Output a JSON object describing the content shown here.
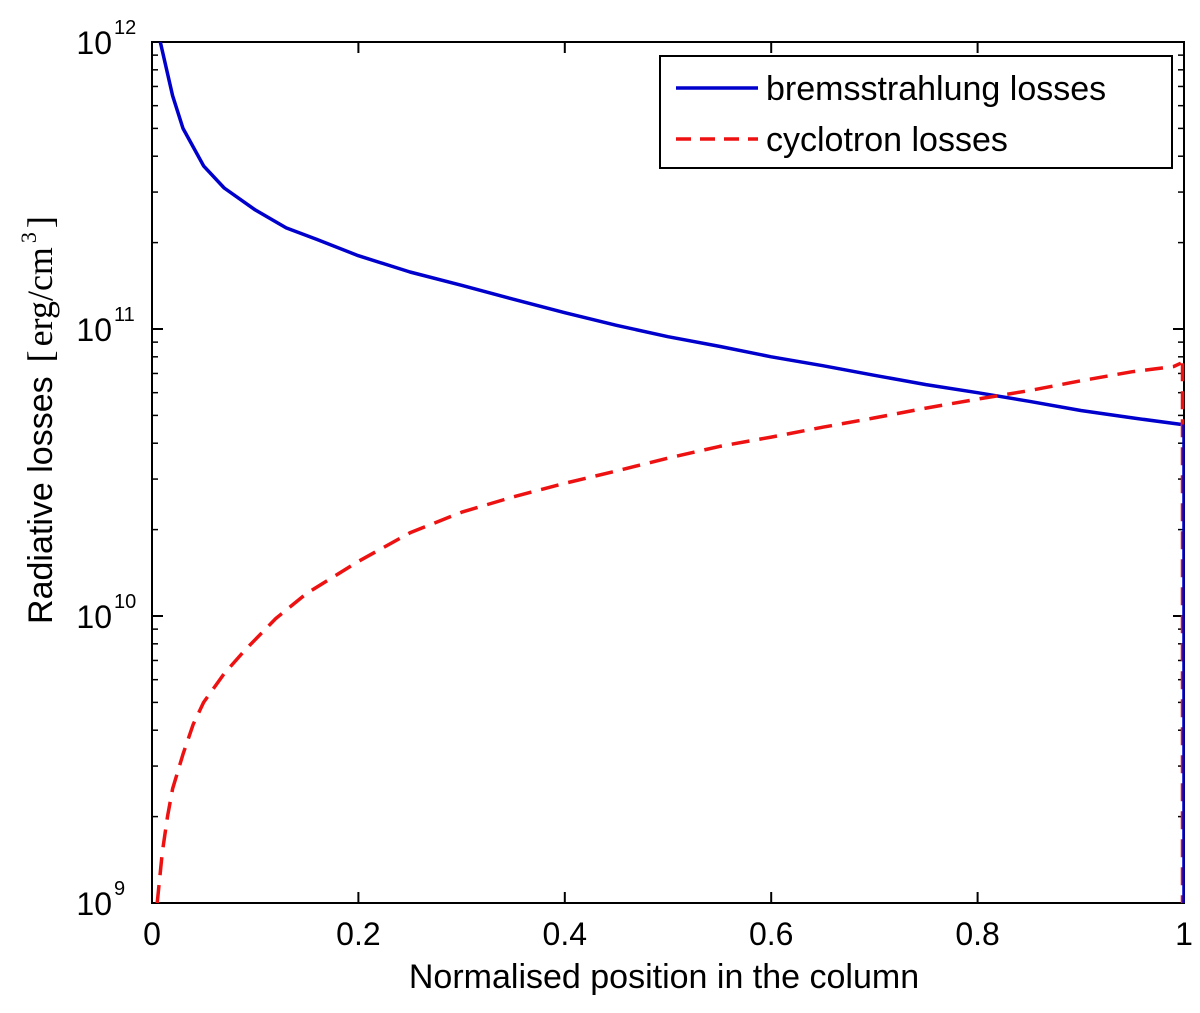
{
  "chart_data": {
    "type": "line",
    "title": "",
    "xlabel": "Normalised position in the column",
    "ylabel": "Radiative losses",
    "ylabel_unit_open": "[",
    "ylabel_unit": "erg/cm",
    "ylabel_unit_exp": "3",
    "ylabel_unit_close": "]",
    "xlim": [
      0,
      1
    ],
    "ylim": [
      1000000000.0,
      1000000000000.0
    ],
    "yscale": "log",
    "grid": false,
    "legend_position": "top-right",
    "x_ticks": [
      {
        "value": 0,
        "label": "0"
      },
      {
        "value": 0.2,
        "label": "0.2"
      },
      {
        "value": 0.4,
        "label": "0.4"
      },
      {
        "value": 0.6,
        "label": "0.6"
      },
      {
        "value": 0.8,
        "label": "0.8"
      },
      {
        "value": 1,
        "label": "1"
      }
    ],
    "y_ticks": [
      {
        "value": 1000000000.0,
        "base": "10",
        "exp": "9"
      },
      {
        "value": 10000000000.0,
        "base": "10",
        "exp": "10"
      },
      {
        "value": 100000000000.0,
        "base": "10",
        "exp": "11"
      },
      {
        "value": 1000000000000.0,
        "base": "10",
        "exp": "12"
      }
    ],
    "series": [
      {
        "name": "bremsstrahlung losses",
        "color": "#0000cc",
        "style": "solid",
        "x": [
          0.008,
          0.02,
          0.03,
          0.05,
          0.07,
          0.1,
          0.13,
          0.16,
          0.2,
          0.25,
          0.3,
          0.35,
          0.4,
          0.45,
          0.5,
          0.55,
          0.6,
          0.65,
          0.7,
          0.75,
          0.8,
          0.85,
          0.9,
          0.95,
          0.997
        ],
        "y": [
          1000000000000.0,
          650000000000.0,
          500000000000.0,
          370000000000.0,
          310000000000.0,
          260000000000.0,
          225000000000.0,
          205000000000.0,
          180000000000.0,
          158000000000.0,
          142000000000.0,
          127000000000.0,
          114000000000.0,
          103000000000.0,
          94000000000.0,
          87000000000.0,
          80000000000.0,
          74500000000.0,
          69000000000.0,
          64000000000.0,
          60000000000.0,
          56000000000.0,
          52000000000.0,
          49000000000.0,
          46500000000.0
        ]
      },
      {
        "name": "cyclotron losses",
        "color": "#ee1111",
        "style": "dashed",
        "x": [
          0.005,
          0.01,
          0.015,
          0.02,
          0.03,
          0.04,
          0.05,
          0.07,
          0.09,
          0.12,
          0.15,
          0.2,
          0.25,
          0.3,
          0.35,
          0.4,
          0.45,
          0.5,
          0.55,
          0.6,
          0.65,
          0.7,
          0.75,
          0.8,
          0.85,
          0.9,
          0.95,
          0.99,
          0.997
        ],
        "y": [
          1000000000.0,
          1500000000.0,
          2000000000.0,
          2500000000.0,
          3300000000.0,
          4200000000.0,
          5000000000.0,
          6300000000.0,
          7600000000.0,
          9800000000.0,
          12000000000.0,
          15500000000.0,
          19500000000.0,
          23000000000.0,
          26000000000.0,
          29000000000.0,
          32000000000.0,
          35500000000.0,
          39000000000.0,
          42000000000.0,
          45500000000.0,
          49000000000.0,
          53000000000.0,
          57000000000.0,
          61000000000.0,
          66000000000.0,
          71000000000.0,
          74000000000.0,
          76000000000.0
        ]
      }
    ]
  }
}
